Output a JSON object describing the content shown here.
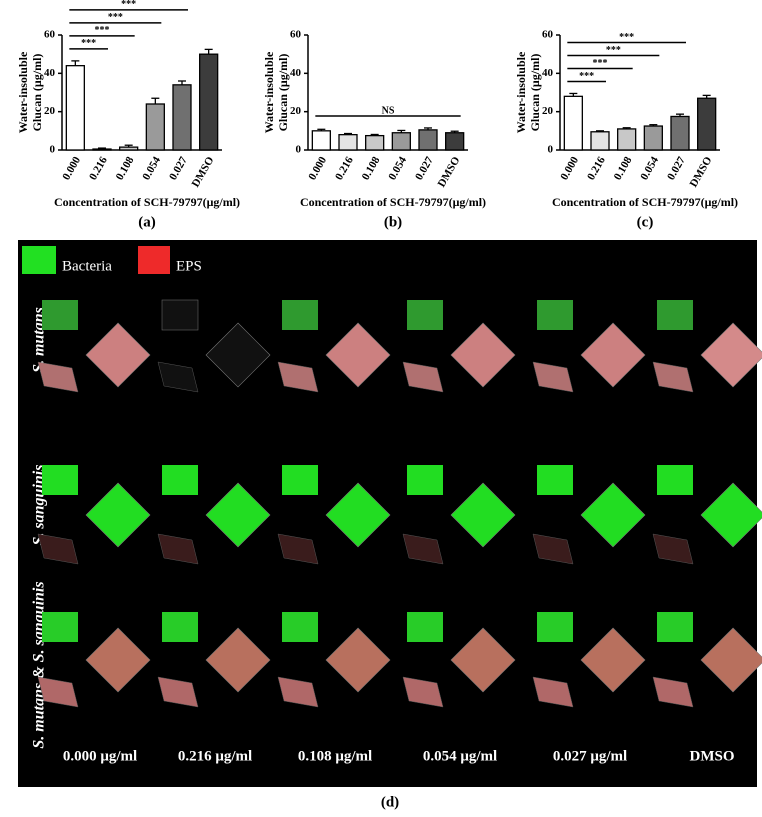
{
  "chart_data": [
    {
      "type": "bar",
      "panel_label": "(a)",
      "ylabel": [
        "Water-insoluble",
        "Glucan (μg/ml)"
      ],
      "xlabel": "Concentration of SCH-79797(μg/ml)",
      "categories": [
        "0.000",
        "0.216",
        "0.108",
        "0.054",
        "0.027",
        "DMSO"
      ],
      "values": [
        44,
        0.5,
        1.5,
        24,
        34,
        50
      ],
      "errors": [
        2.5,
        0.5,
        1,
        3,
        2,
        2.5
      ],
      "colors": [
        "#ffffff",
        "#e4e4e4",
        "#c8c8c8",
        "#9a9a9a",
        "#707070",
        "#3c3c3c"
      ],
      "ylim": [
        0,
        60
      ],
      "yticks": [
        0,
        20,
        40,
        60
      ],
      "annotations": [
        {
          "label": "***",
          "span": [
            "0.000",
            "0.216"
          ]
        },
        {
          "label": "***",
          "span": [
            "0.000",
            "0.108"
          ]
        },
        {
          "label": "***",
          "span": [
            "0.000",
            "0.054"
          ]
        },
        {
          "label": "***",
          "span": [
            "0.000",
            "0.027"
          ]
        }
      ]
    },
    {
      "type": "bar",
      "panel_label": "(b)",
      "ylabel": [
        "Water-insoluble",
        "Glucan (μg/ml)"
      ],
      "xlabel": "Concentration of SCH-79797(μg/ml)",
      "categories": [
        "0.000",
        "0.216",
        "0.108",
        "0.054",
        "0.027",
        "DMSO"
      ],
      "values": [
        10,
        8,
        7.5,
        9,
        10.5,
        9
      ],
      "errors": [
        0.8,
        0.6,
        0.6,
        1.2,
        1,
        0.8
      ],
      "colors": [
        "#ffffff",
        "#e4e4e4",
        "#c8c8c8",
        "#9a9a9a",
        "#707070",
        "#3c3c3c"
      ],
      "ylim": [
        0,
        60
      ],
      "yticks": [
        0,
        20,
        40,
        60
      ],
      "annotations": [
        {
          "label": "NS",
          "span": [
            "0.000",
            "DMSO"
          ]
        }
      ]
    },
    {
      "type": "bar",
      "panel_label": "(c)",
      "ylabel": [
        "Water-insoluble",
        "Glucan (μg/ml)"
      ],
      "xlabel": "Concentration of SCH-79797(μg/ml)",
      "categories": [
        "0.000",
        "0.216",
        "0.108",
        "0.054",
        "0.027",
        "DMSO"
      ],
      "values": [
        28,
        9.5,
        11,
        12.5,
        17.5,
        27
      ],
      "errors": [
        1.5,
        0.5,
        0.6,
        0.7,
        1.2,
        1.5
      ],
      "colors": [
        "#ffffff",
        "#e4e4e4",
        "#c8c8c8",
        "#9a9a9a",
        "#707070",
        "#3c3c3c"
      ],
      "ylim": [
        0,
        60
      ],
      "yticks": [
        0,
        20,
        40,
        60
      ],
      "annotations": [
        {
          "label": "***",
          "span": [
            "0.000",
            "0.216"
          ]
        },
        {
          "label": "***",
          "span": [
            "0.000",
            "0.108"
          ]
        },
        {
          "label": "***",
          "span": [
            "0.000",
            "0.054"
          ]
        },
        {
          "label": "***",
          "span": [
            "0.000",
            "0.027"
          ]
        }
      ]
    }
  ],
  "panel_d": {
    "label": "(d)",
    "legend": [
      {
        "name": "Bacteria",
        "color": "#22e022"
      },
      {
        "name": "EPS",
        "color": "#ee2a2a"
      }
    ],
    "rows": [
      "S. mutans",
      "S. sanguinis",
      "S. mutans & S. sanguinis"
    ],
    "columns": [
      "0.000 μg/ml",
      "0.216 μg/ml",
      "0.108 μg/ml",
      "0.054 μg/ml",
      "0.027 μg/ml",
      "DMSO"
    ]
  }
}
